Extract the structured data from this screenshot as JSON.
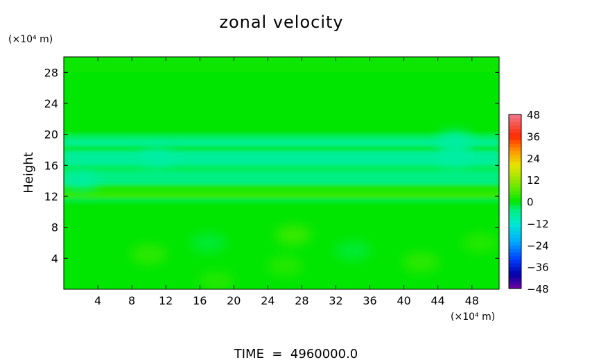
{
  "chart_data": {
    "type": "heatmap",
    "title": "zonal velocity",
    "ylabel": "Height",
    "y_unit": "(×10⁴ m)",
    "x_unit": "(×10⁴ m)",
    "footer": "TIME  =  4960000.0",
    "x_ticks": [
      4,
      8,
      12,
      16,
      20,
      24,
      28,
      32,
      36,
      40,
      44,
      48
    ],
    "y_ticks": [
      4,
      8,
      12,
      16,
      20,
      24,
      28
    ],
    "xlim": [
      0,
      51.2
    ],
    "ylim": [
      0,
      30
    ],
    "colorbar": {
      "ticks": [
        48,
        36,
        24,
        12,
        0,
        -12,
        -24,
        -36,
        -48
      ],
      "range": [
        -48,
        48
      ]
    },
    "bands": [
      {
        "y": [
          28,
          30
        ],
        "value": 0.5
      },
      {
        "y": [
          20,
          28
        ],
        "value": 0
      },
      {
        "y": [
          19.4,
          20
        ],
        "value": -3
      },
      {
        "y": [
          18.5,
          19.4
        ],
        "value": -6
      },
      {
        "y": [
          17.8,
          18.5
        ],
        "value": -2
      },
      {
        "y": [
          16,
          17.8
        ],
        "value": -7
      },
      {
        "y": [
          15.2,
          16
        ],
        "value": -3
      },
      {
        "y": [
          13.5,
          15.2
        ],
        "value": -5
      },
      {
        "y": [
          12.5,
          13.5
        ],
        "value": 2
      },
      {
        "y": [
          11.8,
          12.5
        ],
        "value": 4
      },
      {
        "y": [
          11.2,
          11.8
        ],
        "value": -2
      },
      {
        "y": [
          0,
          11.2
        ],
        "value": 0
      }
    ],
    "blobs": [
      {
        "x": 10,
        "y": 4.5,
        "value": 4
      },
      {
        "x": 18,
        "y": 1,
        "value": 3
      },
      {
        "x": 27,
        "y": 7,
        "value": 5
      },
      {
        "x": 26,
        "y": 3,
        "value": 3
      },
      {
        "x": 17,
        "y": 6,
        "value": -2
      },
      {
        "x": 34,
        "y": 5,
        "value": -2
      },
      {
        "x": 42,
        "y": 3.5,
        "value": 4
      },
      {
        "x": 49,
        "y": 6,
        "value": 3
      },
      {
        "x": 46,
        "y": 17,
        "value": -8
      },
      {
        "x": 11,
        "y": 17,
        "value": -8
      },
      {
        "x": 46,
        "y": 19.2,
        "value": -8
      },
      {
        "x": 2,
        "y": 14,
        "value": -8
      }
    ]
  }
}
